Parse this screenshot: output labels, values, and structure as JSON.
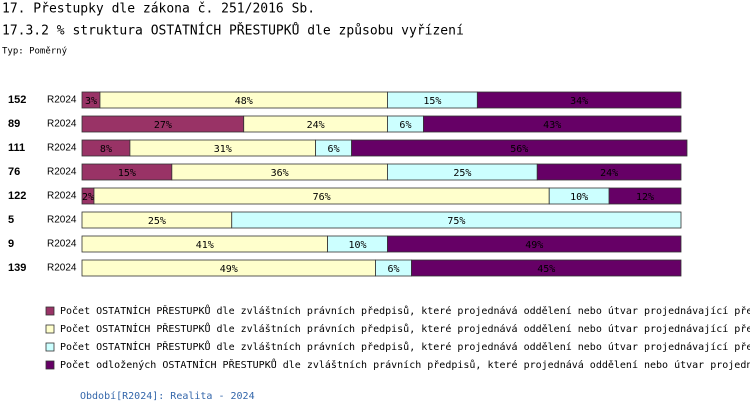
{
  "header": {
    "title": "17. Přestupky dle zákona č. 251/2016 Sb.",
    "subtitle": "17.3.2 % struktura OSTATNÍCH PŘESTUPKŮ dle způsobu vyřízení",
    "type_note": "Typ: Poměrný"
  },
  "chart_data": {
    "type": "bar",
    "orientation": "horizontal",
    "stacked": true,
    "xlim": [
      0,
      100
    ],
    "categories": [
      "152",
      "89",
      "111",
      "76",
      "122",
      "5",
      "9",
      "139"
    ],
    "periods": [
      "R2024",
      "R2024",
      "R2024",
      "R2024",
      "R2024",
      "R2024",
      "R2024",
      "R2024"
    ],
    "series": [
      {
        "name": "Počet OSTATNÍCH PŘESTUPKŮ dle zvláštních právních předpisů, které projednává oddělení nebo útvar projednávající pře",
        "color": "#993366",
        "text_color": "#000000",
        "values": [
          3,
          27,
          8,
          15,
          2,
          null,
          null,
          null
        ],
        "value_labels": [
          "3%",
          "27%",
          "8%",
          "15%",
          "2%",
          null,
          null,
          null
        ]
      },
      {
        "name": "Počet OSTATNÍCH PŘESTUPKŮ dle zvláštních právních předpisů, které projednává oddělení nebo útvar projednávající pře",
        "color": "#ffffcc",
        "text_color": "#000000",
        "values": [
          48,
          24,
          31,
          36,
          76,
          25,
          41,
          49
        ],
        "value_labels": [
          "48%",
          "24%",
          "31%",
          "36%",
          "76%",
          "25%",
          "41%",
          "49%"
        ]
      },
      {
        "name": "Počet OSTATNÍCH PŘESTUPKŮ dle zvláštních právních předpisů, které projednává oddělení nebo útvar projednávající pře",
        "color": "#ccffff",
        "text_color": "#000000",
        "values": [
          15,
          6,
          6,
          25,
          10,
          75,
          10,
          6
        ],
        "value_labels": [
          "15%",
          "6%",
          "6%",
          "25%",
          "10%",
          "75%",
          "10%",
          "6%"
        ]
      },
      {
        "name": "Počet odložených OSTATNÍCH PŘESTUPKŮ dle zvláštních právních předpisů, které projednává oddělení nebo útvar projedn",
        "color": "#660066",
        "text_color": "#000000",
        "values": [
          34,
          43,
          56,
          24,
          12,
          null,
          49,
          45
        ],
        "value_labels": [
          "34%",
          "43%",
          "56%",
          "24%",
          "12%",
          null,
          "49%",
          "45%"
        ]
      }
    ]
  },
  "footer": "Období[R2024]: Realita - 2024"
}
